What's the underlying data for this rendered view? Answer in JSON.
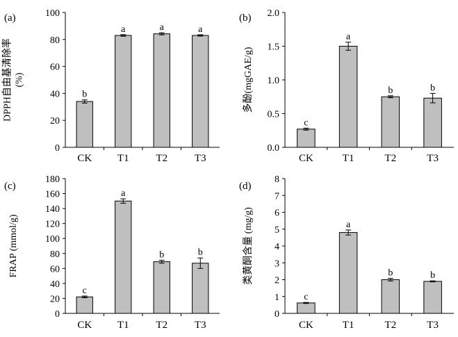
{
  "chart_data": [
    {
      "type": "bar",
      "panel": "(a)",
      "ylabel_lines": [
        "DPPH自由基清除率",
        "(%)"
      ],
      "categories": [
        "CK",
        "T1",
        "T2",
        "T3"
      ],
      "values": [
        34,
        83,
        84.2,
        83
      ],
      "errors": [
        1.2,
        0.6,
        0.8,
        0.5
      ],
      "letters": [
        "b",
        "a",
        "a",
        "a"
      ],
      "ylim": [
        0,
        100
      ],
      "yticks": [
        0,
        20,
        40,
        60,
        80,
        100
      ],
      "ytick_labels": [
        "0",
        "20",
        "40",
        "60",
        "80",
        "100"
      ]
    },
    {
      "type": "bar",
      "panel": "(b)",
      "ylabel_lines": [
        "多酚(mgGAE/g)"
      ],
      "categories": [
        "CK",
        "T1",
        "T2",
        "T3"
      ],
      "values": [
        0.27,
        1.5,
        0.75,
        0.73
      ],
      "errors": [
        0.015,
        0.06,
        0.015,
        0.07
      ],
      "letters": [
        "c",
        "a",
        "b",
        "b"
      ],
      "ylim": [
        0,
        2.0
      ],
      "yticks": [
        0,
        0.5,
        1.0,
        1.5,
        2.0
      ],
      "ytick_labels": [
        "0.0",
        "0.5",
        "1.0",
        "1.5",
        "2.0"
      ]
    },
    {
      "type": "bar",
      "panel": "(c)",
      "ylabel_lines": [
        "FRAP (mmol/g)"
      ],
      "categories": [
        "CK",
        "T1",
        "T2",
        "T3"
      ],
      "values": [
        22,
        150,
        69,
        67
      ],
      "errors": [
        1.2,
        3,
        2,
        7
      ],
      "letters": [
        "c",
        "a",
        "b",
        "b"
      ],
      "ylim": [
        0,
        180
      ],
      "yticks": [
        0,
        20,
        40,
        60,
        80,
        100,
        120,
        140,
        160,
        180
      ],
      "ytick_labels": [
        "0",
        "20",
        "40",
        "60",
        "80",
        "100",
        "120",
        "140",
        "160",
        "180"
      ]
    },
    {
      "type": "bar",
      "panel": "(d)",
      "ylabel_lines": [
        "类黄酮含量 (mg/g)"
      ],
      "categories": [
        "CK",
        "T1",
        "T2",
        "T3"
      ],
      "values": [
        0.62,
        4.8,
        2.0,
        1.9
      ],
      "errors": [
        0.03,
        0.15,
        0.08,
        0.03
      ],
      "letters": [
        "c",
        "a",
        "b",
        "b"
      ],
      "ylim": [
        0,
        8
      ],
      "yticks": [
        0,
        1,
        2,
        3,
        4,
        5,
        6,
        7,
        8
      ],
      "ytick_labels": [
        "0",
        "1",
        "2",
        "3",
        "4",
        "5",
        "6",
        "7",
        "8"
      ]
    }
  ],
  "colors": {
    "bar_fill": "#bfbfbf",
    "bar_stroke": "#000000",
    "axis": "#000000"
  }
}
